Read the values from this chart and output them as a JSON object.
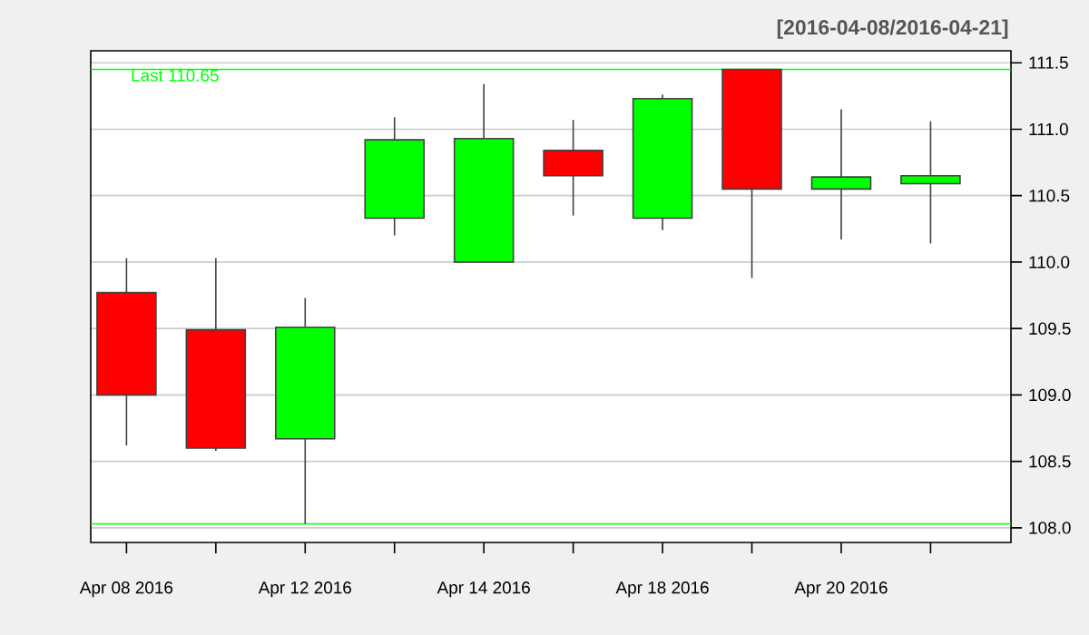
{
  "chart_data": {
    "type": "candlestick",
    "subtitle": "[2016-04-08/2016-04-21]",
    "categories": [
      "Apr 08 2016",
      null,
      "Apr 12 2016",
      null,
      "Apr 14 2016",
      null,
      "Apr 18 2016",
      null,
      "Apr 20 2016",
      null
    ],
    "ohlc": [
      [
        109.77,
        110.03,
        108.62,
        109.0
      ],
      [
        109.49,
        110.03,
        108.58,
        108.6
      ],
      [
        108.67,
        109.73,
        108.03,
        109.51
      ],
      [
        110.33,
        111.09,
        110.2,
        110.92
      ],
      [
        110.0,
        111.34,
        110.0,
        110.93
      ],
      [
        110.84,
        111.07,
        110.35,
        110.65
      ],
      [
        110.33,
        111.26,
        110.24,
        111.23
      ],
      [
        111.45,
        111.45,
        109.88,
        110.55
      ],
      [
        110.55,
        111.15,
        110.17,
        110.64
      ],
      [
        110.59,
        111.06,
        110.14,
        110.65
      ]
    ],
    "colors": [
      "#ff0000",
      "#ff0000",
      "#00ff00",
      "#00ff00",
      "#00ff00",
      "#ff0000",
      "#00ff00",
      "#ff0000",
      "#00ff00",
      "#00ff00"
    ],
    "ylim": [
      107.89,
      111.59
    ],
    "yticks": [
      {
        "value": 108.0,
        "label": "108.0"
      },
      {
        "value": 108.5,
        "label": "108.5"
      },
      {
        "value": 109.0,
        "label": "109.0"
      },
      {
        "value": 109.5,
        "label": "109.5"
      },
      {
        "value": 110.0,
        "label": "110.0"
      },
      {
        "value": 110.5,
        "label": "110.5"
      },
      {
        "value": 111.0,
        "label": "111.0"
      },
      {
        "value": 111.5,
        "label": "111.5"
      }
    ],
    "grid": "y",
    "ref_lines": [
      {
        "axis": "y",
        "value": 111.45,
        "color": "#00ff00"
      },
      {
        "axis": "y",
        "value": 108.03,
        "color": "#00ff00"
      }
    ],
    "annotations": [
      "Last 110.65"
    ]
  }
}
